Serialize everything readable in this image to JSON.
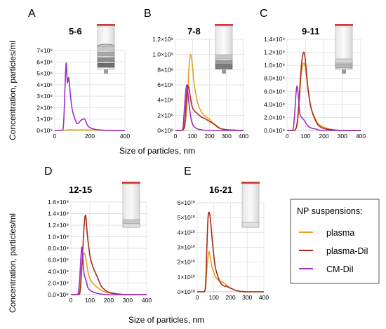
{
  "colors": {
    "plasma": "#e8a020",
    "plasma-DiI": "#a52a1a",
    "CM-DiI": "#9b2fc8"
  },
  "figure": {
    "ylabel_top": "Concentration, particles/ml",
    "ylabel_bottom": "Concentration, particles/ml"
  },
  "legend": {
    "title": "NP suspensions:",
    "items": [
      {
        "label": "plasma",
        "color": "#e8a020"
      },
      {
        "label": "plasma-DiI",
        "color": "#a52a1a"
      },
      {
        "label": "CM-DiI",
        "color": "#9b2fc8"
      }
    ]
  },
  "chart_data": [
    {
      "panel": "A",
      "title": "5-6",
      "type": "line",
      "xlabel": "Size of particles, nm",
      "xlim": [
        0,
        400
      ],
      "ylim": [
        0,
        7
      ],
      "y_exponent": 8,
      "xticks": [
        "0",
        "200",
        "400"
      ],
      "yticks": [
        "0×10⁸",
        "1×10⁸",
        "2×10⁸",
        "3×10⁸",
        "4×10⁸",
        "5×10⁸",
        "6×10⁸",
        "7×10⁸"
      ],
      "series": [
        {
          "name": "plasma",
          "x": [
            0,
            40,
            60,
            80,
            100,
            130,
            160,
            200,
            250,
            300,
            350,
            400
          ],
          "y": [
            0,
            0,
            0.02,
            0.06,
            0.05,
            0.04,
            0.05,
            0.04,
            0.02,
            0.01,
            0.01,
            0
          ]
        },
        {
          "name": "CM-DiI",
          "x": [
            0,
            40,
            50,
            58,
            65,
            72,
            80,
            90,
            100,
            115,
            130,
            150,
            170,
            185,
            200,
            230,
            260,
            300,
            400
          ],
          "y": [
            0,
            0,
            0.5,
            3.5,
            5.9,
            4.2,
            4.6,
            3.0,
            1.8,
            1.0,
            0.6,
            0.9,
            1.0,
            0.5,
            0.25,
            0.1,
            0.05,
            0,
            0
          ]
        }
      ]
    },
    {
      "panel": "B",
      "title": "7-8",
      "type": "line",
      "xlabel": "",
      "xlim": [
        0,
        400
      ],
      "ylim": [
        0,
        1.2
      ],
      "y_exponent": 9,
      "xticks": [
        "0",
        "100",
        "200",
        "300",
        "400"
      ],
      "yticks": [
        "0×10⁸",
        "2×10⁸",
        "4×10⁸",
        "6×10⁸",
        "8×10⁸",
        "1.0×10⁹",
        "1.2×10⁹"
      ],
      "series": [
        {
          "name": "plasma",
          "x": [
            0,
            40,
            55,
            70,
            80,
            90,
            100,
            110,
            125,
            140,
            160,
            180,
            200,
            220,
            250,
            300,
            400
          ],
          "y": [
            0,
            0,
            0.05,
            0.4,
            0.85,
            1.0,
            0.85,
            0.62,
            0.42,
            0.3,
            0.22,
            0.18,
            0.15,
            0.1,
            0.04,
            0.01,
            0
          ]
        },
        {
          "name": "plasma-DiI",
          "x": [
            0,
            40,
            55,
            65,
            72,
            80,
            90,
            100,
            115,
            130,
            150,
            170,
            200,
            230,
            260,
            300,
            400
          ],
          "y": [
            0,
            0,
            0.1,
            0.45,
            0.58,
            0.55,
            0.4,
            0.3,
            0.25,
            0.22,
            0.18,
            0.16,
            0.12,
            0.08,
            0.03,
            0.01,
            0
          ]
        },
        {
          "name": "CM-DiI",
          "x": [
            0,
            40,
            50,
            60,
            68,
            75,
            85,
            95,
            110,
            130,
            150,
            200,
            400
          ],
          "y": [
            0,
            0,
            0.2,
            0.5,
            0.6,
            0.45,
            0.25,
            0.12,
            0.05,
            0.02,
            0.01,
            0,
            0
          ]
        }
      ]
    },
    {
      "panel": "C",
      "title": "9-11",
      "type": "line",
      "xlabel": "",
      "xlim": [
        0,
        400
      ],
      "ylim": [
        0,
        1.4
      ],
      "y_exponent": 9,
      "xticks": [
        "0",
        "100",
        "200",
        "300",
        "400"
      ],
      "yticks": [
        "0.0×10⁸",
        "2.0×10⁸",
        "4.0×10⁸",
        "6.0×10⁸",
        "8.0×10⁸",
        "1.0×10⁹",
        "1.2×10⁹",
        "1.4×10⁹"
      ],
      "series": [
        {
          "name": "plasma",
          "x": [
            0,
            40,
            55,
            65,
            75,
            85,
            95,
            105,
            115,
            130,
            150,
            170,
            200,
            250,
            300,
            400
          ],
          "y": [
            0,
            0,
            0.1,
            0.4,
            0.8,
            1.0,
            1.02,
            0.85,
            0.6,
            0.35,
            0.2,
            0.1,
            0.05,
            0.01,
            0,
            0
          ]
        },
        {
          "name": "plasma-DiI",
          "x": [
            0,
            40,
            55,
            65,
            75,
            85,
            95,
            105,
            115,
            130,
            150,
            170,
            200,
            250,
            300,
            400
          ],
          "y": [
            0,
            0,
            0.12,
            0.45,
            0.9,
            1.15,
            1.18,
            0.9,
            0.62,
            0.35,
            0.18,
            0.08,
            0.03,
            0.01,
            0,
            0
          ]
        },
        {
          "name": "CM-DiI",
          "x": [
            0,
            30,
            40,
            48,
            55,
            62,
            70,
            80,
            95,
            110,
            130,
            160,
            200,
            400
          ],
          "y": [
            0,
            0,
            0.2,
            0.55,
            0.68,
            0.5,
            0.25,
            0.2,
            0.15,
            0.08,
            0.04,
            0.02,
            0,
            0
          ]
        }
      ]
    },
    {
      "panel": "D",
      "title": "12-15",
      "type": "line",
      "xlabel": "Size of particles, nm",
      "xlim": [
        0,
        400
      ],
      "ylim": [
        0,
        1.6
      ],
      "y_exponent": 9,
      "xticks": [
        "0",
        "100",
        "200",
        "300",
        "400"
      ],
      "yticks": [
        "0.0×10⁸",
        "2.0×10⁸",
        "4.0×10⁸",
        "6.0×10⁸",
        "8.0×10⁸",
        "1.0×10⁹",
        "1.2×10⁹",
        "1.4×10⁹",
        "1.6×10⁹"
      ],
      "series": [
        {
          "name": "plasma",
          "x": [
            0,
            40,
            50,
            60,
            70,
            80,
            90,
            100,
            115,
            130,
            150,
            170,
            200,
            250,
            300,
            400
          ],
          "y": [
            0,
            0,
            0.15,
            0.55,
            0.72,
            0.6,
            0.4,
            0.28,
            0.2,
            0.15,
            0.1,
            0.06,
            0.03,
            0.01,
            0,
            0
          ]
        },
        {
          "name": "plasma-DiI",
          "x": [
            0,
            40,
            50,
            60,
            70,
            78,
            85,
            95,
            105,
            120,
            140,
            160,
            180,
            200,
            250,
            300,
            400
          ],
          "y": [
            0,
            0,
            0.1,
            0.6,
            1.2,
            1.37,
            1.1,
            0.8,
            0.6,
            0.45,
            0.3,
            0.15,
            0.08,
            0.04,
            0.01,
            0,
            0
          ]
        },
        {
          "name": "CM-DiI",
          "x": [
            0,
            35,
            45,
            52,
            58,
            64,
            70,
            80,
            90,
            100,
            115,
            130,
            160,
            200,
            400
          ],
          "y": [
            0,
            0,
            0.2,
            0.6,
            0.82,
            0.6,
            0.35,
            0.25,
            0.12,
            0.08,
            0.05,
            0.03,
            0.01,
            0,
            0
          ]
        }
      ]
    },
    {
      "panel": "E",
      "title": "16-21",
      "type": "line",
      "xlabel": "",
      "xlim": [
        0,
        400
      ],
      "ylim": [
        0,
        6
      ],
      "y_exponent": 10,
      "xticks": [
        "0",
        "100",
        "200",
        "300",
        "400"
      ],
      "yticks": [
        "0×10¹⁰",
        "1×10¹⁰",
        "2×10¹⁰",
        "3×10¹⁰",
        "4×10¹⁰",
        "5×10¹⁰",
        "6×10¹⁰"
      ],
      "series": [
        {
          "name": "plasma",
          "x": [
            0,
            40,
            50,
            60,
            70,
            80,
            90,
            100,
            110,
            125,
            140,
            160,
            180,
            200,
            230,
            260,
            300,
            400
          ],
          "y": [
            0,
            0,
            0.3,
            1.8,
            2.7,
            2.2,
            1.6,
            1.3,
            1.0,
            0.8,
            0.7,
            0.6,
            0.4,
            0.25,
            0.1,
            0.03,
            0,
            0
          ]
        },
        {
          "name": "plasma-DiI",
          "x": [
            0,
            40,
            50,
            58,
            65,
            72,
            80,
            90,
            100,
            110,
            125,
            140,
            160,
            180,
            200,
            230,
            260,
            300,
            400
          ],
          "y": [
            0,
            0,
            0.5,
            3.0,
            5.0,
            5.35,
            4.8,
            3.5,
            2.4,
            1.6,
            1.0,
            0.6,
            0.4,
            0.35,
            0.25,
            0.1,
            0.03,
            0,
            0
          ]
        }
      ]
    }
  ]
}
